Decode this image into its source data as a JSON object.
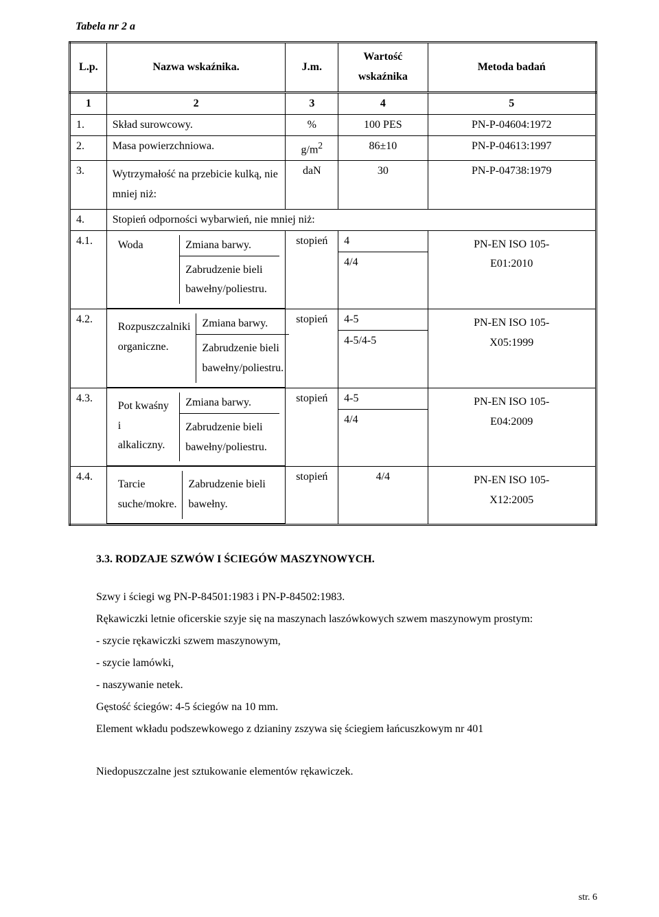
{
  "tabelaTitle": "Tabela nr 2 a",
  "headers": {
    "lp": "L.p.",
    "nazwa": "Nazwa wskaźnika.",
    "jm": "J.m.",
    "wartosc_l1": "Wartość",
    "wartosc_l2": "wskaźnika",
    "metoda": "Metoda badań"
  },
  "numRow": {
    "c1": "1",
    "c2": "2",
    "c3": "3",
    "c4": "4",
    "c5": "5"
  },
  "rows": {
    "r1": {
      "lp": "1.",
      "nazwa": "Skład surowcowy.",
      "jm": "%",
      "wart": "100 PES",
      "metoda": "PN-P-04604:1972"
    },
    "r2": {
      "lp": "2.",
      "nazwa": "Masa powierzchniowa.",
      "jm_html": "g/m",
      "sup": "2",
      "wart": "86±10",
      "metoda": "PN-P-04613:1997"
    },
    "r3": {
      "lp": "3.",
      "nazwa_l1": "Wytrzymałość na przebicie kulką, nie",
      "nazwa_l2": "mniej niż:",
      "jm": "daN",
      "wart": "30",
      "metoda": "PN-P-04738:1979"
    },
    "r4": {
      "lp": "4.",
      "nazwa": "Stopień odporności wybarwień, nie mniej niż:"
    },
    "r41": {
      "lp": "4.1.",
      "nazwa": "Woda",
      "col3_l1": "Zmiana barwy.",
      "col3_l2": "Zabrudzenie bieli",
      "col3_l3": "bawełny/poliestru.",
      "jm": "stopień",
      "wart_l1": "4",
      "wart_l2": "4/4",
      "metoda_l1": "PN-EN ISO 105-",
      "metoda_l2": "E01:2010"
    },
    "r42": {
      "lp": "4.2.",
      "nazwa_l1": "Rozpuszczalniki",
      "nazwa_l2": "organiczne.",
      "col3_l1": "Zmiana barwy.",
      "col3_l2": "Zabrudzenie bieli",
      "col3_l3": "bawełny/poliestru.",
      "jm": "stopień",
      "wart_l1": "4-5",
      "wart_l2": "4-5/4-5",
      "metoda_l1": "PN-EN ISO 105-",
      "metoda_l2": "X05:1999"
    },
    "r43": {
      "lp": "4.3.",
      "nazwa_l1": "Pot kwaśny i",
      "nazwa_l2": "alkaliczny.",
      "col3_l1": "Zmiana barwy.",
      "col3_l2": "Zabrudzenie bieli",
      "col3_l3": "bawełny/poliestru.",
      "jm": "stopień",
      "wart_l1": "4-5",
      "wart_l2": "4/4",
      "metoda_l1": "PN-EN ISO 105-",
      "metoda_l2": "E04:2009"
    },
    "r44": {
      "lp": "4.4.",
      "nazwa_l1": "Tarcie",
      "nazwa_l2": "suche/mokre.",
      "col3_l1": "Zabrudzenie bieli",
      "col3_l2": "bawełny.",
      "jm": "stopień",
      "wart": "4/4",
      "metoda_l1": "PN-EN ISO 105-",
      "metoda_l2": "X12:2005"
    }
  },
  "sectionHeading": "3.3. RODZAJE SZWÓW I ŚCIEGÓW MASZYNOWYCH.",
  "para1": "Szwy i ściegi wg PN-P-84501:1983 i PN-P-84502:1983.",
  "para2": "Rękawiczki letnie oficerskie szyje się na maszynach laszówkowych szwem maszynowym prostym:",
  "list1": "- szycie rękawiczki szwem maszynowym,",
  "list2": "- szycie lamówki,",
  "list3": "- naszywanie netek.",
  "para3": "Gęstość ściegów: 4-5 ściegów na 10 mm.",
  "para4": "Element wkładu podszewkowego z dzianiny zszywa się ściegiem łańcuszkowym nr 401",
  "para5": "Niedopuszczalne jest sztukowanie elementów rękawiczek.",
  "pageNum": "str. 6"
}
